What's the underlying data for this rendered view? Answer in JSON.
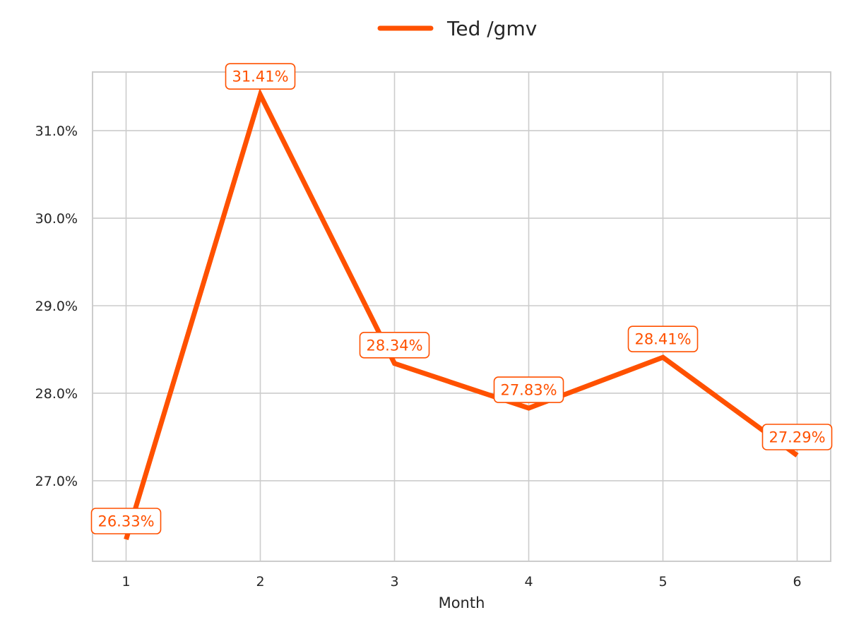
{
  "chart_data": {
    "type": "line",
    "xlabel": "Month",
    "ylabel": "",
    "x": [
      1,
      2,
      3,
      4,
      5,
      6
    ],
    "x_tick_labels": [
      "1",
      "2",
      "3",
      "4",
      "5",
      "6"
    ],
    "y_tick_values": [
      0.27,
      0.28,
      0.29,
      0.3,
      0.31
    ],
    "y_tick_labels": [
      "27.0%",
      "28.0%",
      "29.0%",
      "30.0%",
      "31.0%"
    ],
    "xlim": [
      0.75,
      6.25
    ],
    "ylim": [
      0.2608,
      0.3167
    ],
    "grid": true,
    "legend_position": "top-center",
    "series": [
      {
        "name": "Ted /gmv",
        "color": "#FF5100",
        "values": [
          0.2633,
          0.3141,
          0.2834,
          0.2783,
          0.2841,
          0.2729
        ],
        "data_labels": [
          "26.33%",
          "31.41%",
          "28.34%",
          "27.83%",
          "28.41%",
          "27.29%"
        ]
      }
    ]
  }
}
